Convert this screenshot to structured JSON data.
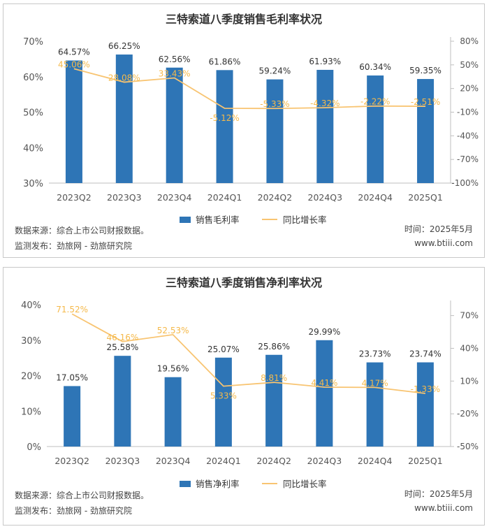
{
  "chart_data": [
    {
      "type": "bar",
      "title": "三特索道八季度销售毛利率状况",
      "categories": [
        "2023Q2",
        "2023Q3",
        "2023Q4",
        "2024Q1",
        "2024Q2",
        "2024Q3",
        "2024Q4",
        "2025Q1"
      ],
      "series": [
        {
          "name": "销售毛利率",
          "type": "bar",
          "axis": "left",
          "values": [
            64.57,
            66.25,
            62.56,
            61.86,
            59.24,
            61.93,
            60.34,
            59.35
          ],
          "labels": [
            "64.57%",
            "66.25%",
            "62.56%",
            "61.86%",
            "59.24%",
            "61.93%",
            "60.34%",
            "59.35%"
          ]
        },
        {
          "name": "同比增长率",
          "type": "line",
          "axis": "right",
          "values": [
            45.06,
            28.08,
            33.43,
            -5.12,
            -5.33,
            -4.32,
            -2.22,
            -2.51
          ],
          "labels": [
            "45.06%",
            "28.08%",
            "33.43%",
            "-5.12%",
            "-5.33%",
            "-4.32%",
            "-2.22%",
            "-2.51%"
          ]
        }
      ],
      "ylim": [
        30,
        70
      ],
      "y_ticks": [
        30,
        40,
        50,
        60,
        70
      ],
      "y_tick_labels": [
        "30%",
        "40%",
        "50%",
        "60%",
        "70%"
      ],
      "y2lim": [
        -100,
        80
      ],
      "y2_ticks": [
        -100,
        -70,
        -40,
        -10,
        20,
        50,
        80
      ],
      "y2_tick_labels": [
        "-100%",
        "-70%",
        "-40%",
        "-10%",
        "20%",
        "50%",
        "80%"
      ],
      "legend": [
        "销售毛利率",
        "同比增长率"
      ],
      "legend_position": "bottom",
      "footer": {
        "source": "数据来源：综合上市公司财报数据。",
        "publisher": "监测发布：劲旅网 - 劲旅研究院",
        "time": "时间：2025年5月",
        "site": "www.btiii.com"
      },
      "colors": {
        "bar": "#2e75b6",
        "line": "#f8c471"
      }
    },
    {
      "type": "bar",
      "title": "三特索道八季度销售净利率状况",
      "categories": [
        "2023Q2",
        "2023Q3",
        "2023Q4",
        "2024Q1",
        "2024Q2",
        "2024Q3",
        "2024Q4",
        "2025Q1"
      ],
      "series": [
        {
          "name": "销售净利率",
          "type": "bar",
          "axis": "left",
          "values": [
            17.05,
            25.58,
            19.56,
            25.07,
            25.86,
            29.99,
            23.73,
            23.74
          ],
          "labels": [
            "17.05%",
            "25.58%",
            "19.56%",
            "25.07%",
            "25.86%",
            "29.99%",
            "23.73%",
            "23.74%"
          ]
        },
        {
          "name": "同比增长率",
          "type": "line",
          "axis": "right",
          "values": [
            71.52,
            46.16,
            52.53,
            5.33,
            8.81,
            4.41,
            4.17,
            -1.33
          ],
          "labels": [
            "71.52%",
            "46.16%",
            "52.53%",
            "5.33%",
            "8.81%",
            "4.41%",
            "4.17%",
            "-1.33%"
          ]
        }
      ],
      "ylim": [
        0,
        40
      ],
      "y_ticks": [
        0,
        10,
        20,
        30,
        40
      ],
      "y_tick_labels": [
        "0%",
        "10%",
        "20%",
        "30%",
        "40%"
      ],
      "y2lim": [
        -50,
        80
      ],
      "y2_ticks": [
        -50,
        -20,
        10,
        40,
        70
      ],
      "y2_tick_labels": [
        "-50%",
        "-20%",
        "10%",
        "40%",
        "70%"
      ],
      "legend": [
        "销售净利率",
        "同比增长率"
      ],
      "legend_position": "bottom",
      "footer": {
        "source": "数据来源：综合上市公司财报数据。",
        "publisher": "监测发布：劲旅网 - 劲旅研究院",
        "time": "时间：2025年5月",
        "site": "www.btiii.com"
      },
      "colors": {
        "bar": "#2e75b6",
        "line": "#f8c471"
      }
    }
  ]
}
